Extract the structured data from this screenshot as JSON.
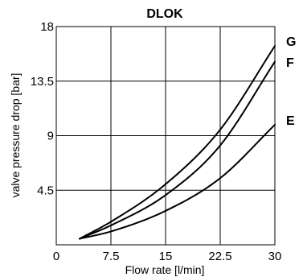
{
  "chart_data": {
    "type": "line",
    "title": "DLOK",
    "xlabel": "Flow rate [l/min]",
    "ylabel": "valve pressure drop [bar]",
    "xlim": [
      0,
      30
    ],
    "ylim": [
      0,
      18
    ],
    "xticks": [
      {
        "value": 0,
        "label": "0"
      },
      {
        "value": 7.5,
        "label": "7.5"
      },
      {
        "value": 15,
        "label": "15"
      },
      {
        "value": 22.5,
        "label": "22.5"
      },
      {
        "value": 30,
        "label": "30"
      }
    ],
    "yticks": [
      {
        "value": 4.5,
        "label": "4.5"
      },
      {
        "value": 9,
        "label": "9"
      },
      {
        "value": 13.5,
        "label": "13.5"
      },
      {
        "value": 18,
        "label": "18"
      }
    ],
    "grid": true,
    "series": [
      {
        "name": "G",
        "x": [
          3.2,
          7.5,
          15,
          22.5,
          30
        ],
        "y": [
          0.5,
          1.9,
          5,
          9.5,
          16.4
        ]
      },
      {
        "name": "F",
        "x": [
          3.2,
          7.5,
          15,
          22.5,
          30
        ],
        "y": [
          0.5,
          1.6,
          4.1,
          8.2,
          15.1
        ]
      },
      {
        "name": "E",
        "x": [
          3.2,
          7.5,
          15,
          22.5,
          30
        ],
        "y": [
          0.5,
          1.1,
          2.8,
          5.5,
          9.9
        ]
      }
    ]
  }
}
